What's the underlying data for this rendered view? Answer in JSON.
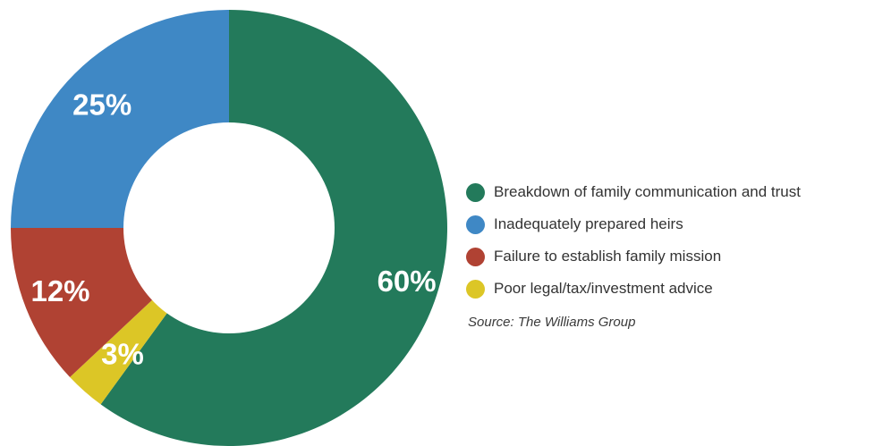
{
  "chart_data": {
    "type": "pie",
    "variant": "donut",
    "title": "",
    "slices": [
      {
        "label": "Breakdown of family communication and trust",
        "value": 60,
        "display": "60%",
        "color": "#237a5b"
      },
      {
        "label": "Poor legal/tax/investment advice",
        "value": 3,
        "display": "3%",
        "color": "#dcc626"
      },
      {
        "label": "Failure to establish family mission",
        "value": 12,
        "display": "12%",
        "color": "#b04233"
      },
      {
        "label": "Inadequately prepared heirs",
        "value": 25,
        "display": "25%",
        "color": "#3f88c5"
      }
    ],
    "legend": {
      "placement": "right",
      "entries": [
        {
          "label": "Breakdown of family communication and trust",
          "color": "#237a5b"
        },
        {
          "label": "Inadequately prepared heirs",
          "color": "#3f88c5"
        },
        {
          "label": "Failure to establish family mission",
          "color": "#b04233"
        },
        {
          "label": "Poor legal/tax/investment advice",
          "color": "#dcc626"
        }
      ]
    },
    "source": "Source: The Williams Group"
  }
}
